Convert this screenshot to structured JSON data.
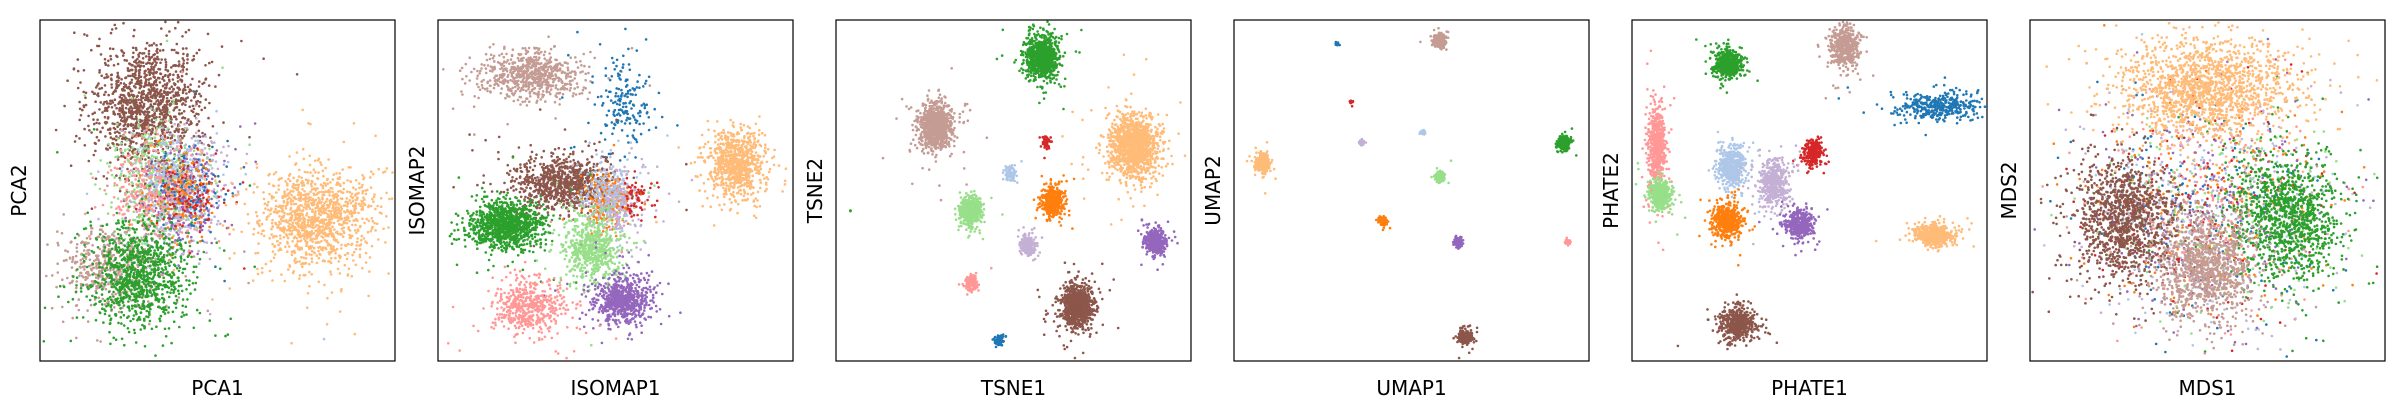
{
  "chart_data": [
    {
      "type": "scatter",
      "xlabel": "PCA1",
      "ylabel": "PCA2",
      "clusters": [
        {
          "color": "#8c564b",
          "x": 0.3,
          "y": 0.75,
          "sx": 0.075,
          "sy": 0.09,
          "n": 1300
        },
        {
          "color": "#98df8a",
          "x": 0.33,
          "y": 0.52,
          "sx": 0.06,
          "sy": 0.08,
          "n": 500
        },
        {
          "color": "#c5b0d5",
          "x": 0.4,
          "y": 0.5,
          "sx": 0.06,
          "sy": 0.08,
          "n": 350
        },
        {
          "color": "#9467bd",
          "x": 0.4,
          "y": 0.48,
          "sx": 0.06,
          "sy": 0.07,
          "n": 250
        },
        {
          "color": "#aec7e8",
          "x": 0.38,
          "y": 0.52,
          "sx": 0.06,
          "sy": 0.08,
          "n": 250
        },
        {
          "color": "#1f77b4",
          "x": 0.42,
          "y": 0.5,
          "sx": 0.05,
          "sy": 0.07,
          "n": 120
        },
        {
          "color": "#ff7f0e",
          "x": 0.4,
          "y": 0.5,
          "sx": 0.05,
          "sy": 0.07,
          "n": 150
        },
        {
          "color": "#d62728",
          "x": 0.42,
          "y": 0.48,
          "sx": 0.05,
          "sy": 0.06,
          "n": 100
        },
        {
          "color": "#ff9896",
          "x": 0.3,
          "y": 0.5,
          "sx": 0.06,
          "sy": 0.08,
          "n": 250
        },
        {
          "color": "#c49c94",
          "x": 0.2,
          "y": 0.27,
          "sx": 0.07,
          "sy": 0.06,
          "n": 500
        },
        {
          "color": "#2ca02c",
          "x": 0.28,
          "y": 0.25,
          "sx": 0.07,
          "sy": 0.08,
          "n": 1000
        },
        {
          "color": "#ffbb78",
          "x": 0.78,
          "y": 0.42,
          "sx": 0.08,
          "sy": 0.07,
          "n": 1200
        }
      ]
    },
    {
      "type": "scatter",
      "xlabel": "ISOMAP1",
      "ylabel": "ISOMAP2",
      "clusters": [
        {
          "color": "#c49c94",
          "x": 0.26,
          "y": 0.84,
          "sx": 0.07,
          "sy": 0.035,
          "n": 700
        },
        {
          "color": "#1f77b4",
          "x": 0.52,
          "y": 0.75,
          "sx": 0.04,
          "sy": 0.07,
          "n": 180
        },
        {
          "color": "#ffbb78",
          "x": 0.84,
          "y": 0.58,
          "sx": 0.04,
          "sy": 0.05,
          "n": 800
        },
        {
          "color": "#8c564b",
          "x": 0.35,
          "y": 0.52,
          "sx": 0.07,
          "sy": 0.04,
          "n": 900
        },
        {
          "color": "#ff7f0e",
          "x": 0.48,
          "y": 0.47,
          "sx": 0.03,
          "sy": 0.04,
          "n": 300
        },
        {
          "color": "#c5b0d5",
          "x": 0.5,
          "y": 0.46,
          "sx": 0.04,
          "sy": 0.05,
          "n": 250
        },
        {
          "color": "#aec7e8",
          "x": 0.47,
          "y": 0.5,
          "sx": 0.04,
          "sy": 0.05,
          "n": 150
        },
        {
          "color": "#d62728",
          "x": 0.56,
          "y": 0.48,
          "sx": 0.02,
          "sy": 0.03,
          "n": 60
        },
        {
          "color": "#2ca02c",
          "x": 0.19,
          "y": 0.4,
          "sx": 0.05,
          "sy": 0.035,
          "n": 1100
        },
        {
          "color": "#98df8a",
          "x": 0.43,
          "y": 0.33,
          "sx": 0.04,
          "sy": 0.05,
          "n": 600
        },
        {
          "color": "#9467bd",
          "x": 0.52,
          "y": 0.18,
          "sx": 0.04,
          "sy": 0.035,
          "n": 700
        },
        {
          "color": "#ff9896",
          "x": 0.26,
          "y": 0.16,
          "sx": 0.05,
          "sy": 0.04,
          "n": 500
        }
      ]
    },
    {
      "type": "scatter",
      "xlabel": "TSNE1",
      "ylabel": "TSNE2",
      "clusters": [
        {
          "color": "#2ca02c",
          "x": 0.58,
          "y": 0.89,
          "sx": 0.022,
          "sy": 0.032,
          "n": 900
        },
        {
          "color": "#c49c94",
          "x": 0.28,
          "y": 0.69,
          "sx": 0.024,
          "sy": 0.033,
          "n": 900
        },
        {
          "color": "#ffbb78",
          "x": 0.84,
          "y": 0.63,
          "sx": 0.033,
          "sy": 0.045,
          "n": 1300
        },
        {
          "color": "#d62728",
          "x": 0.59,
          "y": 0.64,
          "sx": 0.006,
          "sy": 0.008,
          "n": 60
        },
        {
          "color": "#aec7e8",
          "x": 0.49,
          "y": 0.55,
          "sx": 0.008,
          "sy": 0.01,
          "n": 100
        },
        {
          "color": "#ff7f0e",
          "x": 0.61,
          "y": 0.47,
          "sx": 0.014,
          "sy": 0.02,
          "n": 450
        },
        {
          "color": "#98df8a",
          "x": 0.38,
          "y": 0.44,
          "sx": 0.015,
          "sy": 0.02,
          "n": 500
        },
        {
          "color": "#c5b0d5",
          "x": 0.54,
          "y": 0.34,
          "sx": 0.01,
          "sy": 0.015,
          "n": 280
        },
        {
          "color": "#9467bd",
          "x": 0.9,
          "y": 0.35,
          "sx": 0.013,
          "sy": 0.017,
          "n": 450
        },
        {
          "color": "#ff9896",
          "x": 0.38,
          "y": 0.23,
          "sx": 0.009,
          "sy": 0.012,
          "n": 180
        },
        {
          "color": "#8c564b",
          "x": 0.68,
          "y": 0.16,
          "sx": 0.022,
          "sy": 0.032,
          "n": 900
        },
        {
          "color": "#1f77b4",
          "x": 0.46,
          "y": 0.06,
          "sx": 0.006,
          "sy": 0.008,
          "n": 80
        },
        {
          "color": "#2ca02c",
          "x": 0.04,
          "y": 0.44,
          "sx": 0.002,
          "sy": 0.002,
          "n": 3
        }
      ]
    },
    {
      "type": "scatter",
      "xlabel": "UMAP1",
      "ylabel": "UMAP2",
      "clusters": [
        {
          "color": "#c49c94",
          "x": 0.58,
          "y": 0.94,
          "sx": 0.008,
          "sy": 0.009,
          "n": 400
        },
        {
          "color": "#1f77b4",
          "x": 0.29,
          "y": 0.93,
          "sx": 0.002,
          "sy": 0.002,
          "n": 30
        },
        {
          "color": "#d62728",
          "x": 0.33,
          "y": 0.76,
          "sx": 0.002,
          "sy": 0.002,
          "n": 25
        },
        {
          "color": "#c5b0d5",
          "x": 0.36,
          "y": 0.64,
          "sx": 0.004,
          "sy": 0.004,
          "n": 60
        },
        {
          "color": "#aec7e8",
          "x": 0.53,
          "y": 0.67,
          "sx": 0.003,
          "sy": 0.003,
          "n": 40
        },
        {
          "color": "#2ca02c",
          "x": 0.93,
          "y": 0.64,
          "sx": 0.008,
          "sy": 0.01,
          "n": 350
        },
        {
          "color": "#ffbb78",
          "x": 0.08,
          "y": 0.58,
          "sx": 0.009,
          "sy": 0.013,
          "n": 400
        },
        {
          "color": "#98df8a",
          "x": 0.58,
          "y": 0.54,
          "sx": 0.006,
          "sy": 0.007,
          "n": 200
        },
        {
          "color": "#ff7f0e",
          "x": 0.42,
          "y": 0.41,
          "sx": 0.005,
          "sy": 0.006,
          "n": 150
        },
        {
          "color": "#9467bd",
          "x": 0.63,
          "y": 0.35,
          "sx": 0.006,
          "sy": 0.007,
          "n": 150
        },
        {
          "color": "#ff9896",
          "x": 0.94,
          "y": 0.35,
          "sx": 0.003,
          "sy": 0.004,
          "n": 50
        },
        {
          "color": "#8c564b",
          "x": 0.65,
          "y": 0.07,
          "sx": 0.009,
          "sy": 0.01,
          "n": 300
        }
      ]
    },
    {
      "type": "scatter",
      "xlabel": "PHATE1",
      "ylabel": "PHATE2",
      "clusters": [
        {
          "color": "#c49c94",
          "x": 0.6,
          "y": 0.92,
          "sx": 0.02,
          "sy": 0.03,
          "n": 500
        },
        {
          "color": "#2ca02c",
          "x": 0.27,
          "y": 0.87,
          "sx": 0.018,
          "sy": 0.02,
          "n": 600
        },
        {
          "color": "#1f77b4",
          "x": 0.87,
          "y": 0.75,
          "sx": 0.06,
          "sy": 0.02,
          "n": 400
        },
        {
          "color": "#ff9896",
          "x": 0.07,
          "y": 0.63,
          "sx": 0.012,
          "sy": 0.06,
          "n": 600
        },
        {
          "color": "#aec7e8",
          "x": 0.28,
          "y": 0.57,
          "sx": 0.02,
          "sy": 0.03,
          "n": 500
        },
        {
          "color": "#d62728",
          "x": 0.51,
          "y": 0.61,
          "sx": 0.015,
          "sy": 0.02,
          "n": 250
        },
        {
          "color": "#c5b0d5",
          "x": 0.4,
          "y": 0.52,
          "sx": 0.02,
          "sy": 0.035,
          "n": 500
        },
        {
          "color": "#98df8a",
          "x": 0.08,
          "y": 0.49,
          "sx": 0.015,
          "sy": 0.02,
          "n": 500
        },
        {
          "color": "#ff7f0e",
          "x": 0.27,
          "y": 0.41,
          "sx": 0.02,
          "sy": 0.025,
          "n": 500
        },
        {
          "color": "#9467bd",
          "x": 0.47,
          "y": 0.4,
          "sx": 0.02,
          "sy": 0.022,
          "n": 400
        },
        {
          "color": "#ffbb78",
          "x": 0.85,
          "y": 0.37,
          "sx": 0.025,
          "sy": 0.015,
          "n": 500
        },
        {
          "color": "#8c564b",
          "x": 0.3,
          "y": 0.11,
          "sx": 0.025,
          "sy": 0.025,
          "n": 500
        }
      ]
    },
    {
      "type": "scatter",
      "xlabel": "MDS1",
      "ylabel": "MDS2",
      "clusters": [
        {
          "color": "#1f77b4",
          "x": 0.5,
          "y": 0.45,
          "sx": 0.17,
          "sy": 0.17,
          "n": 180
        },
        {
          "color": "#aec7e8",
          "x": 0.5,
          "y": 0.45,
          "sx": 0.17,
          "sy": 0.17,
          "n": 180
        },
        {
          "color": "#ff7f0e",
          "x": 0.5,
          "y": 0.45,
          "sx": 0.16,
          "sy": 0.16,
          "n": 250
        },
        {
          "color": "#d62728",
          "x": 0.5,
          "y": 0.45,
          "sx": 0.17,
          "sy": 0.17,
          "n": 150
        },
        {
          "color": "#9467bd",
          "x": 0.5,
          "y": 0.45,
          "sx": 0.17,
          "sy": 0.17,
          "n": 250
        },
        {
          "color": "#c5b0d5",
          "x": 0.5,
          "y": 0.45,
          "sx": 0.17,
          "sy": 0.17,
          "n": 200
        },
        {
          "color": "#ff9896",
          "x": 0.5,
          "y": 0.45,
          "sx": 0.17,
          "sy": 0.17,
          "n": 200
        },
        {
          "color": "#98df8a",
          "x": 0.5,
          "y": 0.45,
          "sx": 0.17,
          "sy": 0.17,
          "n": 200
        },
        {
          "color": "#8c564b",
          "x": 0.27,
          "y": 0.42,
          "sx": 0.07,
          "sy": 0.09,
          "n": 1200
        },
        {
          "color": "#2ca02c",
          "x": 0.72,
          "y": 0.42,
          "sx": 0.07,
          "sy": 0.09,
          "n": 1200
        },
        {
          "color": "#c49c94",
          "x": 0.5,
          "y": 0.27,
          "sx": 0.07,
          "sy": 0.08,
          "n": 1100
        },
        {
          "color": "#ffbb78",
          "x": 0.5,
          "y": 0.8,
          "sx": 0.12,
          "sy": 0.07,
          "n": 1600
        }
      ]
    }
  ]
}
